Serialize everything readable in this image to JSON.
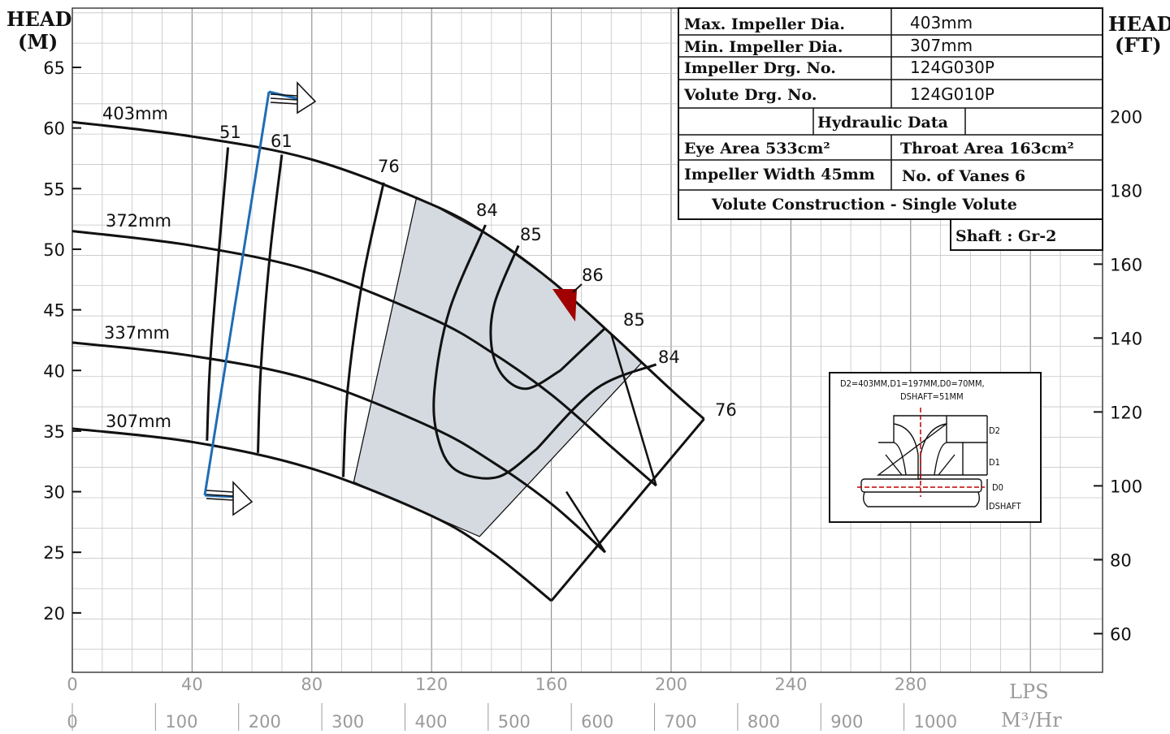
{
  "chart_data": {
    "type": "line",
    "axes": {
      "left_label": [
        "HEAD",
        "(M)"
      ],
      "right_label": [
        "HEAD",
        "(FT)"
      ],
      "x_unit_lps": "LPS",
      "x_unit_m3hr": "M³/Hr",
      "y_ticks_m": [
        20,
        25,
        30,
        35,
        40,
        45,
        50,
        55,
        60,
        65
      ],
      "y_ticks_ft": [
        60,
        80,
        100,
        120,
        140,
        160,
        180,
        200
      ],
      "x_ticks_lps": [
        0,
        40,
        80,
        120,
        160,
        200,
        240,
        280
      ],
      "x_ticks_m3hr": [
        0,
        100,
        200,
        300,
        400,
        500,
        600,
        700,
        800,
        900,
        1000
      ]
    },
    "impeller_curves": [
      {
        "name": "403mm",
        "x": [
          0,
          40,
          80,
          120,
          140,
          160,
          180,
          200,
          211
        ],
        "y": [
          60.5,
          59.3,
          57.4,
          53.7,
          51.0,
          47.4,
          43.0,
          38.4,
          36.0
        ]
      },
      {
        "name": "372mm",
        "x": [
          0,
          40,
          80,
          120,
          140,
          160,
          180,
          195
        ],
        "y": [
          51.5,
          50.3,
          48.2,
          44.3,
          41.5,
          38.0,
          33.7,
          30.5
        ]
      },
      {
        "name": "337mm",
        "x": [
          0,
          40,
          80,
          120,
          140,
          160,
          178
        ],
        "y": [
          42.3,
          41.2,
          39.2,
          35.3,
          32.5,
          29.0,
          25.0
        ]
      },
      {
        "name": "307mm",
        "x": [
          0,
          40,
          80,
          120,
          140,
          160
        ],
        "y": [
          35.2,
          34.1,
          31.9,
          28.0,
          25.0,
          21.0
        ]
      }
    ],
    "efficiency_contours": [
      {
        "label": "51",
        "x": [
          52,
          49,
          46,
          45
        ],
        "y": [
          58.4,
          50.0,
          40.5,
          34.2
        ]
      },
      {
        "label": "61",
        "x": [
          70,
          66,
          63,
          62
        ],
        "y": [
          57.8,
          49.5,
          40.3,
          33.2
        ]
      },
      {
        "label": "76",
        "x": [
          104,
          97,
          92,
          90.5
        ],
        "y": [
          55.5,
          47.5,
          38.5,
          31.2
        ]
      },
      {
        "label": "84",
        "x": [
          138,
          126,
          121,
          122,
          128,
          142,
          155
        ],
        "y": [
          52.0,
          45.0,
          38.5,
          34.5,
          31.8,
          31.2,
          33.5
        ]
      },
      {
        "label": "85",
        "x": [
          149,
          141,
          140,
          144,
          152,
          163
        ],
        "y": [
          50.3,
          45.5,
          42.0,
          39.5,
          38.5,
          40.0
        ]
      },
      {
        "label": "85",
        "x": [
          163,
          178
        ],
        "y": [
          40.0,
          43.5
        ]
      },
      {
        "label": "84",
        "x": [
          155,
          175,
          195
        ],
        "y": [
          33.5,
          38.5,
          40.5
        ]
      },
      {
        "label": "76",
        "x": [
          211
        ],
        "y": [
          36.0
        ]
      },
      {
        "label": "86",
        "x": [
          165
        ],
        "y": [
          46.5
        ]
      }
    ],
    "inset_labels": [
      "D2=403MM,D1=197MM,D0=70MM,",
      "DSHAFT=51MM"
    ],
    "inset_dim_labels": [
      "D2",
      "D1",
      "D0",
      "DSHAFT"
    ]
  },
  "spec_table": {
    "rows": [
      {
        "label": "Max. Impeller Dia.",
        "value": "403mm"
      },
      {
        "label": "Min. Impeller Dia.",
        "value": "307mm"
      },
      {
        "label": "Impeller Drg. No.",
        "value": "124G030P"
      },
      {
        "label": "Volute Drg. No.",
        "value": "124G010P"
      }
    ],
    "hydraulic_header": "Hydraulic Data",
    "eye_area": "Eye Area 533cm²",
    "throat_area": "Throat Area 163cm²",
    "impeller_width": "Impeller Width 45mm",
    "vanes": "No. of Vanes  6",
    "volute": "Volute Construction  -  Single Volute",
    "shaft": "Shaft : Gr-2"
  },
  "colors": {
    "curve": "#111111",
    "grid": "#8a8a8a",
    "shade": "#d4dae0",
    "arrow": "#1f6db5",
    "marker": "#a00000"
  }
}
